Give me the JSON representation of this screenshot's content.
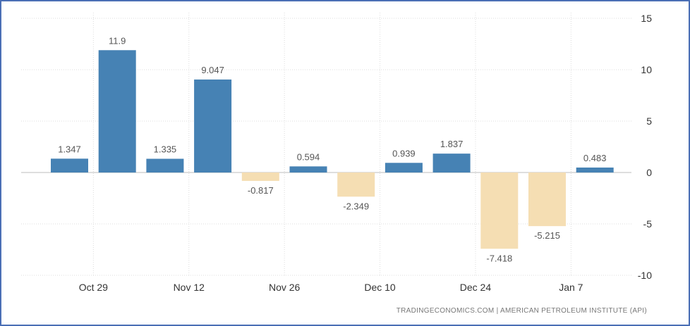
{
  "chart_data": {
    "type": "bar",
    "x_tick_labels": [
      "Oct 29",
      "Nov 12",
      "Nov 26",
      "Dec 10",
      "Dec 24",
      "Jan 7"
    ],
    "values": [
      1.347,
      11.9,
      1.335,
      9.047,
      -0.817,
      0.594,
      -2.349,
      0.939,
      1.837,
      -7.418,
      -5.215,
      0.483
    ],
    "value_labels": [
      "1.347",
      "11.9",
      "1.335",
      "9.047",
      "-0.817",
      "0.594",
      "-2.349",
      "0.939",
      "1.837",
      "-7.418",
      "-5.215",
      "0.483"
    ],
    "y_ticks": [
      "15",
      "10",
      "5",
      "0",
      "-5",
      "-10"
    ],
    "ylim": [
      -10,
      15
    ],
    "grid": true,
    "colors": {
      "positive": "#4682b4",
      "negative": "#f5deb3"
    },
    "source": "TRADINGECONOMICS.COM  |  AMERICAN PETROLEUM INSTITUTE (API)"
  }
}
